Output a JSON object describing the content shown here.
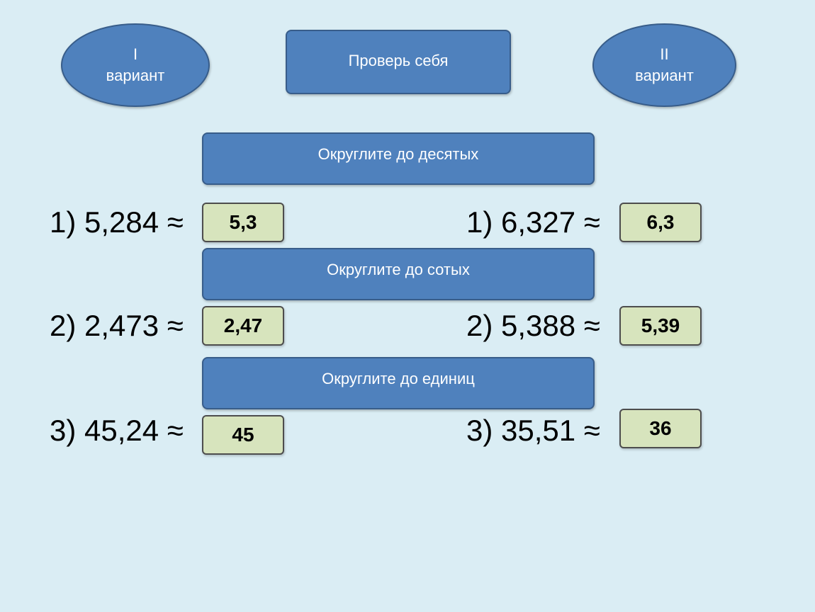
{
  "header": {
    "variant1": {
      "numeral": "I",
      "label": "вариант"
    },
    "check_button": "Проверь себя",
    "variant2": {
      "numeral": "II",
      "label": "вариант"
    }
  },
  "sections": [
    {
      "title": "Округлите до десятых"
    },
    {
      "title": "Округлите до сотых"
    },
    {
      "title": "Округлите до единиц"
    }
  ],
  "rows": [
    {
      "left": {
        "expr": "1) 5,284 ≈",
        "answer": "5,3"
      },
      "right": {
        "expr": "1) 6,327 ≈",
        "answer": "6,3"
      }
    },
    {
      "left": {
        "expr": "2) 2,473 ≈",
        "answer": "2,47"
      },
      "right": {
        "expr": "2) 5,388 ≈",
        "answer": "5,39"
      }
    },
    {
      "left": {
        "expr": "3) 45,24 ≈",
        "answer": "45"
      },
      "right": {
        "expr": "3) 35,51 ≈",
        "answer": "36"
      }
    }
  ],
  "colors": {
    "background": "#daedf4",
    "button_fill": "#4f81bd",
    "button_border": "#385d8a",
    "answer_fill": "#d7e4bd"
  }
}
